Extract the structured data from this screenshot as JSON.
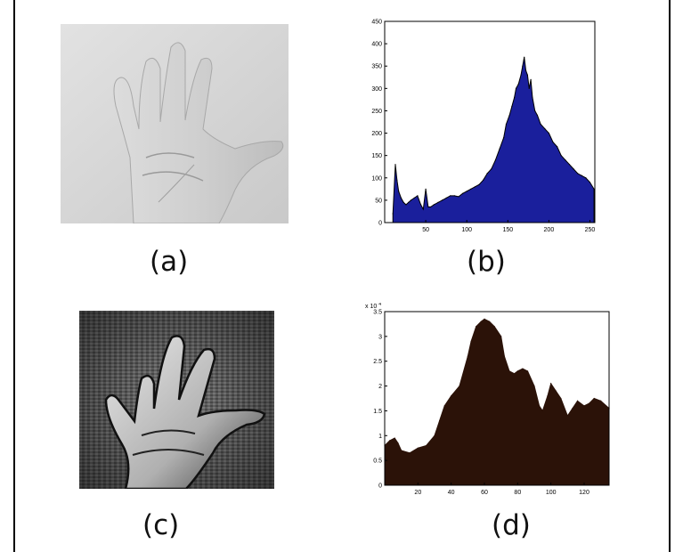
{
  "figure": {
    "captions": {
      "a": "(a)",
      "b": "(b)",
      "c": "(c)",
      "d": "(d)"
    }
  },
  "panel_a": {
    "content": "grayscale photo of an open hand, palm facing forward, light background"
  },
  "panel_c": {
    "content": "edge-enhanced grayscale photo of an open hand on a textured background"
  },
  "chart_data": [
    {
      "type": "area",
      "panel": "b",
      "xlabel": "",
      "ylabel": "",
      "xlim": [
        0,
        256
      ],
      "ylim": [
        0,
        450
      ],
      "xticks": [
        50,
        100,
        150,
        200,
        250
      ],
      "yticks": [
        0,
        50,
        100,
        150,
        200,
        250,
        300,
        350,
        400,
        450
      ],
      "fill_color": "#1a1f9c",
      "line_color": "#000000",
      "x": [
        10,
        13,
        15,
        17,
        20,
        23,
        26,
        29,
        32,
        36,
        40,
        44,
        47,
        50,
        53,
        56,
        60,
        65,
        70,
        75,
        80,
        85,
        90,
        95,
        100,
        105,
        110,
        115,
        120,
        125,
        130,
        135,
        140,
        145,
        148,
        152,
        155,
        158,
        160,
        163,
        166,
        168,
        170,
        172,
        174,
        176,
        178,
        180,
        183,
        186,
        190,
        195,
        200,
        205,
        210,
        215,
        220,
        225,
        230,
        235,
        240,
        245,
        250,
        255
      ],
      "values": [
        20,
        130,
        95,
        70,
        55,
        45,
        40,
        45,
        50,
        55,
        60,
        40,
        30,
        75,
        35,
        35,
        40,
        45,
        50,
        55,
        60,
        60,
        58,
        65,
        70,
        75,
        80,
        85,
        95,
        110,
        120,
        140,
        165,
        190,
        220,
        240,
        260,
        280,
        300,
        310,
        330,
        350,
        370,
        340,
        330,
        300,
        320,
        280,
        250,
        240,
        220,
        210,
        200,
        180,
        170,
        150,
        140,
        130,
        120,
        110,
        105,
        100,
        90,
        75
      ]
    },
    {
      "type": "area",
      "panel": "d",
      "xlabel": "",
      "ylabel": "",
      "y_multiplier": "x 10",
      "y_multiplier_exp": "4",
      "xlim": [
        0,
        135
      ],
      "ylim": [
        0,
        3.5
      ],
      "xticks": [
        20,
        40,
        60,
        80,
        100,
        120
      ],
      "yticks": [
        0,
        0.5,
        1,
        1.5,
        2,
        2.5,
        3,
        3.5
      ],
      "fill_color": "#2b1208",
      "x": [
        0,
        3,
        6,
        8,
        10,
        15,
        20,
        25,
        30,
        33,
        36,
        40,
        45,
        50,
        52,
        55,
        58,
        60,
        63,
        66,
        70,
        72,
        75,
        78,
        80,
        83,
        86,
        90,
        93,
        95,
        98,
        100,
        103,
        106,
        110,
        113,
        116,
        120,
        123,
        126,
        130,
        135
      ],
      "values": [
        0.8,
        0.9,
        0.95,
        0.85,
        0.7,
        0.65,
        0.75,
        0.8,
        1.0,
        1.3,
        1.6,
        1.8,
        2.0,
        2.6,
        2.9,
        3.2,
        3.3,
        3.35,
        3.3,
        3.2,
        3.0,
        2.6,
        2.3,
        2.25,
        2.3,
        2.35,
        2.3,
        2.0,
        1.6,
        1.5,
        1.8,
        2.05,
        1.9,
        1.75,
        1.4,
        1.55,
        1.7,
        1.6,
        1.65,
        1.75,
        1.7,
        1.55
      ]
    }
  ]
}
